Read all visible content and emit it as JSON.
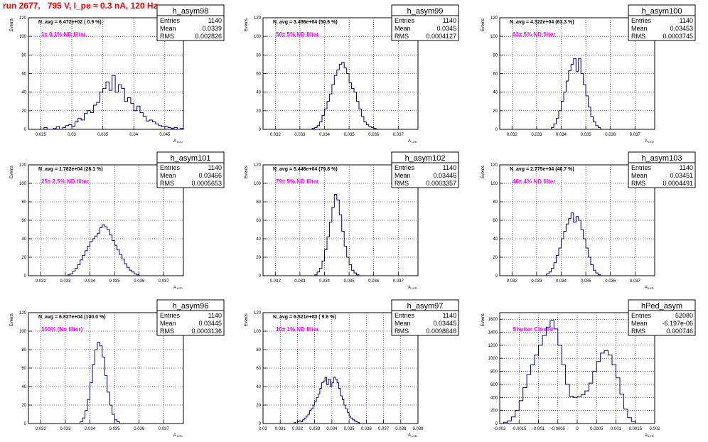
{
  "page": {
    "title": "run 2677,   795 V, I_pe ≈ 0.3 nA, 120 Hz",
    "stat_labels": {
      "entries": "Entries",
      "mean": "Mean",
      "rms": "RMS"
    },
    "ylabel": "Events",
    "xlabel": "A",
    "xlabel_sub": "LED"
  },
  "colors": {
    "line": "#000080",
    "note": "#ff00ff",
    "title": "#ff0000",
    "grid": "#000000"
  },
  "chart_data": [
    {
      "type": "histogram",
      "name": "h_asym98",
      "annotation": "N_avg = 6.472e+02 ( 0.9 %)",
      "note": "1± 0.1% ND filter",
      "entries": "1140",
      "mean": "0.0339",
      "rms": "0.002826",
      "xlim": [
        0.023,
        0.048
      ],
      "ylim": [
        0,
        120
      ],
      "xticks": [
        0.025,
        0.03,
        0.035,
        0.04,
        0.045
      ],
      "xticklabels": [
        "0.025",
        "0.03",
        "0.035",
        "0.04",
        "0.045"
      ],
      "yticks": [
        0,
        20,
        40,
        60,
        80,
        100,
        120
      ],
      "yticklabels": [
        "0",
        "20",
        "40",
        "60",
        "80",
        "100",
        "120"
      ],
      "grid": true,
      "bin_start": 0.0255,
      "bin_width": 0.0005,
      "counts": [
        2,
        0,
        0,
        1,
        3,
        0,
        2,
        4,
        5,
        3,
        8,
        12,
        10,
        17,
        20,
        18,
        26,
        29,
        40,
        44,
        51,
        42,
        58,
        40,
        48,
        44,
        30,
        34,
        28,
        20,
        25,
        18,
        14,
        9,
        10,
        8,
        6,
        4,
        3,
        3,
        2,
        1,
        2,
        0,
        1
      ]
    },
    {
      "type": "histogram",
      "name": "h_asym99",
      "annotation": "N_avg = 3.456e+04 (50.6 %)",
      "note": "50± 5% ND filter",
      "entries": "1140",
      "mean": "0.0345",
      "rms": "0.0004127",
      "xlim": [
        0.0315,
        0.0378
      ],
      "ylim": [
        0,
        120
      ],
      "xticks": [
        0.032,
        0.033,
        0.034,
        0.035,
        0.036,
        0.037
      ],
      "xticklabels": [
        "0.032",
        "0.033",
        "0.034",
        "0.035",
        "0.036",
        "0.037"
      ],
      "yticks": [
        0,
        20,
        40,
        60,
        80,
        100,
        120
      ],
      "yticklabels": [
        "0",
        "20",
        "40",
        "60",
        "80",
        "100",
        "120"
      ],
      "grid": true,
      "bin_start": 0.0335,
      "bin_width": 0.0001,
      "counts": [
        1,
        2,
        4,
        8,
        15,
        22,
        30,
        38,
        48,
        58,
        64,
        70,
        72,
        66,
        60,
        50,
        44,
        40,
        30,
        22,
        14,
        8,
        5,
        3,
        2,
        1
      ]
    },
    {
      "type": "histogram",
      "name": "h_asym100",
      "annotation": "N_avg = 4.322e+04 (63.3 %)",
      "note": "63± 5% ND filter",
      "entries": "1140",
      "mean": "0.03453",
      "rms": "0.0003745",
      "xlim": [
        0.0315,
        0.0378
      ],
      "ylim": [
        0,
        120
      ],
      "xticks": [
        0.032,
        0.033,
        0.034,
        0.035,
        0.036,
        0.037
      ],
      "xticklabels": [
        "0.032",
        "0.033",
        "0.034",
        "0.035",
        "0.036",
        "0.037"
      ],
      "yticks": [
        0,
        20,
        40,
        60,
        80,
        100,
        120
      ],
      "yticklabels": [
        "0",
        "20",
        "40",
        "60",
        "80",
        "100",
        "120"
      ],
      "grid": true,
      "bin_start": 0.0336,
      "bin_width": 0.0001,
      "counts": [
        2,
        6,
        12,
        20,
        30,
        40,
        52,
        63,
        70,
        76,
        62,
        76,
        60,
        48,
        36,
        24,
        14,
        8,
        4,
        2
      ]
    },
    {
      "type": "histogram",
      "name": "h_asym101",
      "annotation": "N_avg = 1.782e+04 (26.1 %)",
      "note": "25± 2.5% ND filter",
      "entries": "1140",
      "mean": "0.03466",
      "rms": "0.0005653",
      "xlim": [
        0.0315,
        0.0378
      ],
      "ylim": [
        0,
        120
      ],
      "xticks": [
        0.032,
        0.033,
        0.034,
        0.035,
        0.036,
        0.037
      ],
      "xticklabels": [
        "0.032",
        "0.033",
        "0.034",
        "0.035",
        "0.036",
        "0.037"
      ],
      "yticks": [
        0,
        20,
        40,
        60,
        80,
        100,
        120
      ],
      "yticklabels": [
        "0",
        "20",
        "40",
        "60",
        "80",
        "100",
        "120"
      ],
      "grid": true,
      "bin_start": 0.0331,
      "bin_width": 0.0001,
      "counts": [
        1,
        2,
        5,
        8,
        12,
        17,
        22,
        27,
        32,
        37,
        40,
        43,
        46,
        52,
        55,
        53,
        50,
        44,
        38,
        33,
        28,
        23,
        18,
        13,
        9,
        6,
        4,
        2,
        1
      ]
    },
    {
      "type": "histogram",
      "name": "h_asym102",
      "annotation": "N_avg = 5.446e+04 (79.8 %)",
      "note": "79± 5% ND filter",
      "entries": "1140",
      "mean": "0.03446",
      "rms": "0.0003357",
      "xlim": [
        0.0315,
        0.0378
      ],
      "ylim": [
        0,
        120
      ],
      "xticks": [
        0.032,
        0.033,
        0.034,
        0.035,
        0.036,
        0.037
      ],
      "xticklabels": [
        "0.032",
        "0.033",
        "0.034",
        "0.035",
        "0.036",
        "0.037"
      ],
      "yticks": [
        0,
        20,
        40,
        60,
        80,
        100,
        120
      ],
      "yticklabels": [
        "0",
        "20",
        "40",
        "60",
        "80",
        "100",
        "120"
      ],
      "grid": true,
      "bin_start": 0.0336,
      "bin_width": 0.0001,
      "counts": [
        1,
        4,
        8,
        16,
        28,
        42,
        58,
        74,
        88,
        82,
        66,
        48,
        32,
        20,
        12,
        6,
        3,
        1
      ]
    },
    {
      "type": "histogram",
      "name": "h_asym103",
      "annotation": "N_avg = 2.775e+04 (40.7 %)",
      "note": "40± 4% ND filter",
      "entries": "1140",
      "mean": "0.03451",
      "rms": "0.0004491",
      "xlim": [
        0.0315,
        0.0378
      ],
      "ylim": [
        0,
        120
      ],
      "xticks": [
        0.032,
        0.033,
        0.034,
        0.035,
        0.036,
        0.037
      ],
      "xticklabels": [
        "0.032",
        "0.033",
        "0.034",
        "0.035",
        "0.036",
        "0.037"
      ],
      "yticks": [
        0,
        20,
        40,
        60,
        80,
        100,
        120
      ],
      "yticklabels": [
        "0",
        "20",
        "40",
        "60",
        "80",
        "100",
        "120"
      ],
      "grid": true,
      "bin_start": 0.0334,
      "bin_width": 0.0001,
      "counts": [
        2,
        4,
        8,
        14,
        22,
        30,
        40,
        48,
        56,
        62,
        68,
        58,
        64,
        60,
        50,
        40,
        30,
        20,
        12,
        6,
        3,
        1
      ]
    },
    {
      "type": "histogram",
      "name": "h_asym96",
      "annotation": "N_avg = 6.827e+04 (100.0 %)",
      "note": "100% (No filter)",
      "entries": "1140",
      "mean": "0.03445",
      "rms": "0.0003136",
      "xlim": [
        0.0315,
        0.0378
      ],
      "ylim": [
        0,
        120
      ],
      "xticks": [
        0.032,
        0.033,
        0.034,
        0.035,
        0.036,
        0.037
      ],
      "xticklabels": [
        "0.032",
        "0.033",
        "0.034",
        "0.035",
        "0.036",
        "0.037"
      ],
      "yticks": [
        0,
        20,
        40,
        60,
        80,
        100,
        120
      ],
      "yticklabels": [
        "0",
        "20",
        "40",
        "60",
        "80",
        "100",
        "120"
      ],
      "grid": true,
      "bin_start": 0.0336,
      "bin_width": 0.0001,
      "counts": [
        2,
        6,
        14,
        26,
        44,
        64,
        80,
        88,
        84,
        72,
        52,
        34,
        20,
        10,
        4,
        2
      ]
    },
    {
      "type": "histogram",
      "name": "h_asym97",
      "annotation": "N_avg = 6.521e+03 ( 9.6 %)",
      "note": "10± 1% ND filter",
      "entries": "1140",
      "mean": "0.03445",
      "rms": "0.0008646",
      "xlim": [
        0.03,
        0.039
      ],
      "ylim": [
        0,
        120
      ],
      "xticks": [
        0.03,
        0.031,
        0.032,
        0.033,
        0.034,
        0.035,
        0.036,
        0.037,
        0.038,
        0.039
      ],
      "xticklabels": [
        "0.03",
        "0.031",
        "0.032",
        "0.033",
        "0.034",
        "0.035",
        "0.036",
        "0.037",
        "0.038",
        "0.039"
      ],
      "yticks": [
        0,
        20,
        40,
        60,
        80,
        100,
        120
      ],
      "yticklabels": [
        "0",
        "20",
        "40",
        "60",
        "80",
        "100",
        "120"
      ],
      "grid": true,
      "bin_start": 0.0318,
      "bin_width": 0.0001,
      "counts": [
        1,
        0,
        2,
        3,
        2,
        4,
        6,
        8,
        10,
        14,
        16,
        20,
        24,
        28,
        32,
        38,
        44,
        46,
        50,
        42,
        48,
        40,
        44,
        50,
        48,
        44,
        38,
        30,
        26,
        20,
        16,
        12,
        8,
        6,
        4,
        3,
        2,
        1
      ]
    },
    {
      "type": "histogram",
      "name": "hPed_asym",
      "annotation": "",
      "note": "Shutter Closed",
      "entries": "52080",
      "mean": "-6.197e-06",
      "rms": "0.000746",
      "xlim": [
        -0.002,
        0.002
      ],
      "ylim": [
        0,
        1700
      ],
      "xticks": [
        -0.002,
        -0.0015,
        -0.001,
        -0.0005,
        0,
        0.0005,
        0.001,
        0.0015,
        0.002
      ],
      "xticklabels": [
        "-0.002",
        "-0.0015",
        "-0.001",
        "-0.0005",
        "0",
        "0.0005",
        "0.001",
        "0.0015",
        "0.002"
      ],
      "yticks": [
        0,
        200,
        400,
        600,
        800,
        1000,
        1200,
        1400,
        1600
      ],
      "yticklabels": [
        "0",
        "200",
        "400",
        "600",
        "800",
        "1000",
        "1200",
        "1400",
        "1600"
      ],
      "grid": true,
      "bin_start": -0.0019,
      "bin_width": 0.0001,
      "counts": [
        20,
        40,
        100,
        200,
        350,
        550,
        750,
        900,
        1050,
        1200,
        1350,
        1480,
        1580,
        1450,
        1200,
        900,
        600,
        420,
        400,
        410,
        440,
        500,
        620,
        800,
        950,
        1080,
        1120,
        1050,
        900,
        700,
        450,
        220,
        90,
        30
      ]
    }
  ]
}
